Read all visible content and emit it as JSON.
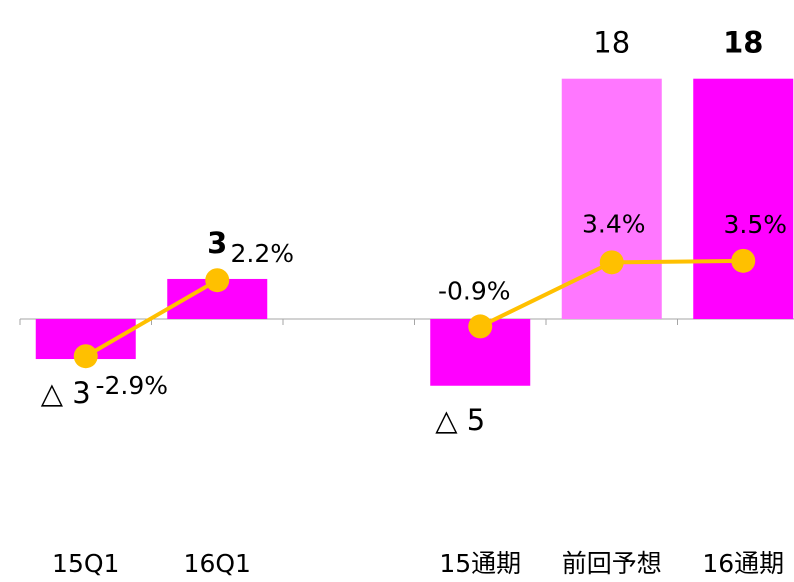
{
  "chart_data": {
    "type": "bar",
    "categories": [
      "15Q1",
      "16Q1",
      "",
      "15通期",
      "前回予想",
      "16通期"
    ],
    "series": [
      {
        "kind": "bar",
        "values": [
          -3,
          3,
          null,
          -5,
          18,
          18
        ],
        "labels": [
          "△ 3",
          "3",
          "",
          "△ 5",
          "18",
          "18"
        ],
        "bold": [
          false,
          true,
          false,
          false,
          false,
          true
        ],
        "colors": [
          "#ff00ff",
          "#ff00ff",
          null,
          "#ff00ff",
          "#ff77ff",
          "#ff00ff"
        ]
      },
      {
        "kind": "line",
        "segments": [
          [
            0,
            1
          ],
          [
            3,
            4,
            5
          ]
        ],
        "values": [
          -2.9,
          2.2,
          null,
          -0.9,
          3.4,
          3.5
        ],
        "labels": [
          "-2.9%",
          "2.2%",
          "",
          "-0.9%",
          "3.4%",
          "3.5%"
        ],
        "color": "#ffc000"
      }
    ],
    "ylim_bar": [
      -12,
      18
    ],
    "grid": false,
    "legend": "none"
  }
}
